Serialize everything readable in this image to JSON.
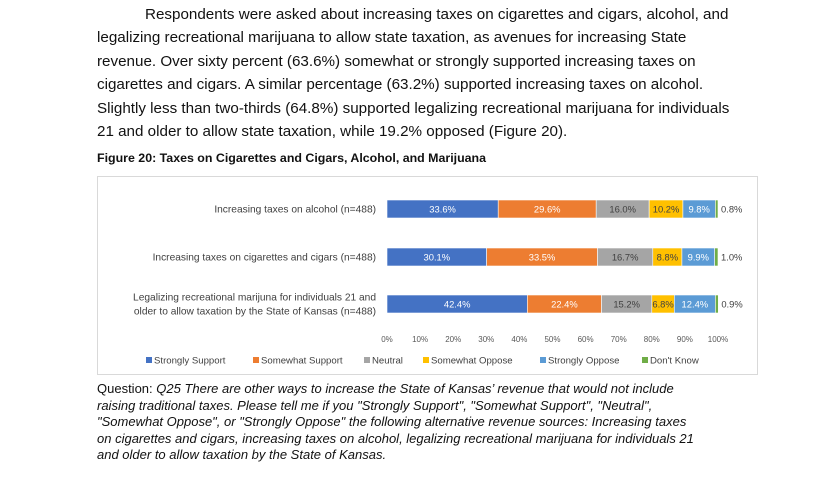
{
  "paragraph": {
    "lines": [
      "Respondents were asked about increasing taxes on cigarettes and cigars, alcohol, and",
      "legalizing recreational marijuana to allow state taxation, as avenues for increasing State",
      "revenue. Over sixty percent (63.6%) somewhat or strongly supported increasing taxes on",
      "cigarettes and cigars. A similar percentage (63.2%) supported increasing taxes on alcohol.",
      "Slightly less than two-thirds (64.8%) supported legalizing recreational marijuana for individuals",
      "21 and older to allow state taxation, while 19.2% opposed (Figure 20)."
    ]
  },
  "figure_title": "Figure 20: Taxes on Cigarettes and Cigars, Alcohol, and Marijuana",
  "chart_data": {
    "type": "bar",
    "orientation": "horizontal",
    "stacked": true,
    "categories": [
      [
        "Increasing taxes on alcohol (n=488)"
      ],
      [
        "Increasing taxes on cigarettes and cigars (n=488)"
      ],
      [
        "Legalizing recreational marijuna for individuals 21 and",
        "older to allow taxation by the State of Kansas (n=488)"
      ]
    ],
    "series": [
      {
        "name": "Strongly Support",
        "color": "#4472C4",
        "values": [
          33.6,
          30.1,
          42.4
        ],
        "labels": [
          "33.6%",
          "30.1%",
          "42.4%"
        ]
      },
      {
        "name": "Somewhat Support",
        "color": "#ED7D31",
        "values": [
          29.6,
          33.5,
          22.4
        ],
        "labels": [
          "29.6%",
          "33.5%",
          "22.4%"
        ]
      },
      {
        "name": "Neutral",
        "color": "#A5A5A5",
        "values": [
          16.0,
          16.7,
          15.2
        ],
        "labels": [
          "16.0%",
          "16.7%",
          "15.2%"
        ]
      },
      {
        "name": "Somewhat Oppose",
        "color": "#FFC000",
        "values": [
          10.2,
          8.8,
          6.8
        ],
        "labels": [
          "10.2%",
          "8.8%",
          "6.8%"
        ]
      },
      {
        "name": "Strongly Oppose",
        "color": "#5B9BD5",
        "values": [
          9.8,
          9.9,
          12.4
        ],
        "labels": [
          "9.8%",
          "9.9%",
          "12.4%"
        ]
      },
      {
        "name": "Don't Know",
        "color": "#70AD47",
        "values": [
          0.8,
          1.0,
          0.9
        ],
        "labels": [
          "0.8%",
          "1.0%",
          "0.9%"
        ]
      }
    ],
    "x_ticks": [
      "0%",
      "10%",
      "20%",
      "30%",
      "40%",
      "50%",
      "60%",
      "70%",
      "80%",
      "90%",
      "100%"
    ],
    "xlim": [
      0,
      100
    ],
    "legend_position": "bottom",
    "grid": false
  },
  "question": {
    "prefix": "Question: ",
    "lines": [
      "Q25 There are other ways to increase the State of Kansas’ revenue that would not include",
      "raising traditional taxes. Please tell me if you \"Strongly Support\", \"Somewhat Support\", \"Neutral\",",
      "\"Somewhat Oppose\", or \"Strongly Oppose\" the following alternative revenue sources: Increasing taxes",
      "on cigarettes and cigars, increasing taxes on alcohol, legalizing recreational marijuana for individuals 21",
      "and older to allow taxation by the State of Kansas."
    ]
  }
}
